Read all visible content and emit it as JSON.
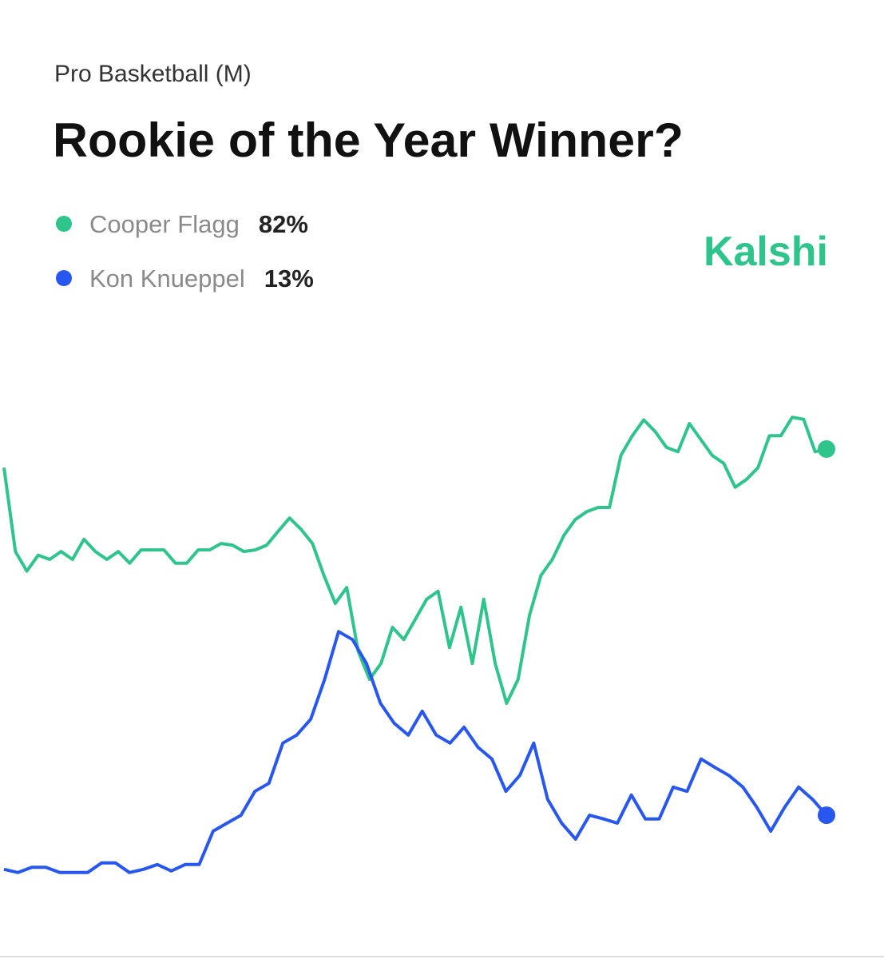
{
  "chart_data": {
    "type": "line",
    "supertitle": "Pro Basketball (M)",
    "title": "Rookie of the Year Winner?",
    "brand": "Kalshi",
    "ylim": [
      0,
      100
    ],
    "series": [
      {
        "name": "Cooper Flagg",
        "value_label": "82%",
        "color": "#2ec48c",
        "values": [
          78.5,
          62.7,
          59.0,
          62.0,
          61.2,
          62.7,
          61.2,
          65.0,
          62.7,
          61.2,
          62.7,
          60.5,
          63.0,
          63.0,
          63.0,
          60.5,
          60.5,
          63.0,
          63.0,
          64.2,
          63.9,
          62.7,
          63.0,
          63.9,
          66.5,
          69.0,
          66.9,
          64.2,
          58.2,
          52.9,
          55.9,
          43.9,
          38.6,
          41.6,
          48.4,
          46.1,
          49.9,
          53.7,
          55.2,
          44.6,
          52.2,
          41.6,
          53.7,
          41.6,
          34.1,
          38.6,
          50.7,
          58.2,
          61.2,
          65.7,
          68.7,
          70.2,
          71.0,
          71.0,
          80.8,
          84.5,
          87.5,
          85.3,
          82.3,
          81.5,
          86.8,
          83.8,
          80.8,
          79.3,
          74.8,
          76.3,
          78.5,
          84.5,
          84.5,
          88.0,
          87.6,
          81.5,
          82
        ]
      },
      {
        "name": "Kon Knueppel",
        "value_label": "13%",
        "color": "#2757ef",
        "values": [
          2.8,
          2.2,
          3.2,
          3.2,
          2.2,
          2.2,
          2.2,
          4.0,
          4.0,
          2.2,
          2.8,
          3.7,
          2.5,
          3.7,
          3.7,
          10.0,
          11.5,
          13.0,
          17.5,
          19.0,
          26.6,
          28.1,
          31.1,
          38.6,
          47.6,
          46.1,
          41.6,
          34.1,
          30.3,
          28.1,
          32.6,
          28.1,
          26.6,
          29.6,
          25.8,
          23.6,
          17.5,
          20.5,
          26.6,
          16.0,
          11.5,
          8.5,
          13.0,
          12.3,
          11.5,
          16.8,
          12.3,
          12.3,
          18.3,
          17.5,
          23.6,
          22.0,
          20.5,
          18.3,
          14.5,
          10.0,
          14.5,
          18.3,
          16.0,
          13
        ]
      }
    ]
  }
}
